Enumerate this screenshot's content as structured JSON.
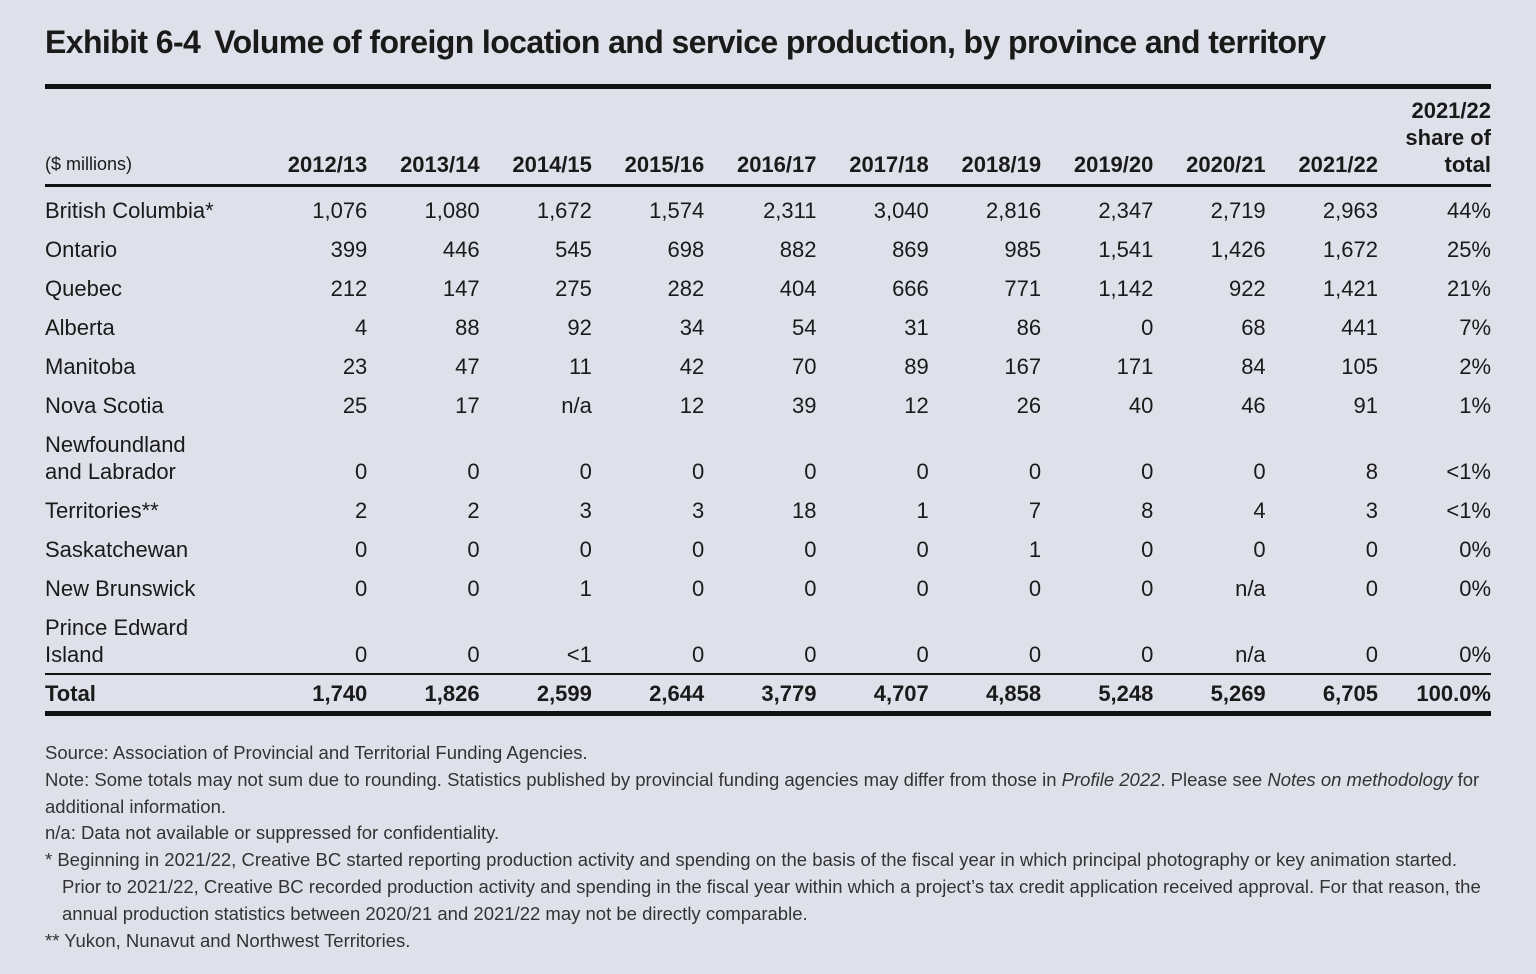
{
  "title": {
    "number": "Exhibit 6-4",
    "text": "Volume of foreign location and service production, by province and territory"
  },
  "table": {
    "unit_label": "($ millions)",
    "columns": [
      "2012/13",
      "2013/14",
      "2014/15",
      "2015/16",
      "2016/17",
      "2017/18",
      "2018/19",
      "2019/20",
      "2020/21",
      "2021/22"
    ],
    "share_header": [
      "2021/22",
      "share of",
      "total"
    ],
    "rows": [
      {
        "label": [
          "British Columbia*"
        ],
        "values": [
          "1,076",
          "1,080",
          "1,672",
          "1,574",
          "2,311",
          "3,040",
          "2,816",
          "2,347",
          "2,719",
          "2,963"
        ],
        "share": "44%"
      },
      {
        "label": [
          "Ontario"
        ],
        "values": [
          "399",
          "446",
          "545",
          "698",
          "882",
          "869",
          "985",
          "1,541",
          "1,426",
          "1,672"
        ],
        "share": "25%"
      },
      {
        "label": [
          "Quebec"
        ],
        "values": [
          "212",
          "147",
          "275",
          "282",
          "404",
          "666",
          "771",
          "1,142",
          "922",
          "1,421"
        ],
        "share": "21%"
      },
      {
        "label": [
          "Alberta"
        ],
        "values": [
          "4",
          "88",
          "92",
          "34",
          "54",
          "31",
          "86",
          "0",
          "68",
          "441"
        ],
        "share": "7%"
      },
      {
        "label": [
          "Manitoba"
        ],
        "values": [
          "23",
          "47",
          "11",
          "42",
          "70",
          "89",
          "167",
          "171",
          "84",
          "105"
        ],
        "share": "2%"
      },
      {
        "label": [
          "Nova Scotia"
        ],
        "values": [
          "25",
          "17",
          "n/a",
          "12",
          "39",
          "12",
          "26",
          "40",
          "46",
          "91"
        ],
        "share": "1%"
      },
      {
        "label": [
          "Newfoundland",
          "and Labrador"
        ],
        "values": [
          "0",
          "0",
          "0",
          "0",
          "0",
          "0",
          "0",
          "0",
          "0",
          "8"
        ],
        "share": "<1%"
      },
      {
        "label": [
          "Territories**"
        ],
        "values": [
          "2",
          "2",
          "3",
          "3",
          "18",
          "1",
          "7",
          "8",
          "4",
          "3"
        ],
        "share": "<1%"
      },
      {
        "label": [
          "Saskatchewan"
        ],
        "values": [
          "0",
          "0",
          "0",
          "0",
          "0",
          "0",
          "1",
          "0",
          "0",
          "0"
        ],
        "share": "0%"
      },
      {
        "label": [
          "New Brunswick"
        ],
        "values": [
          "0",
          "0",
          "1",
          "0",
          "0",
          "0",
          "0",
          "0",
          "n/a",
          "0"
        ],
        "share": "0%"
      },
      {
        "label": [
          "Prince Edward",
          "Island"
        ],
        "values": [
          "0",
          "0",
          "<1",
          "0",
          "0",
          "0",
          "0",
          "0",
          "n/a",
          "0"
        ],
        "share": "0%"
      }
    ],
    "total": {
      "label": "Total",
      "values": [
        "1,740",
        "1,826",
        "2,599",
        "2,644",
        "3,779",
        "4,707",
        "4,858",
        "5,248",
        "5,269",
        "6,705"
      ],
      "share": "100.0%"
    }
  },
  "notes": {
    "source": "Source: Association of Provincial and Territorial Funding Agencies.",
    "note_a": "Note: Some totals may not sum due to rounding. Statistics published by provincial funding agencies may differ from those in ",
    "note_profile": "Profile 2022",
    "note_b": ". Please see ",
    "note_method": "Notes on methodology",
    "note_c": " for additional information.",
    "na": "n/a: Data not available or suppressed for confidentiality.",
    "star": "* Beginning in 2021/22, Creative BC started reporting production activity and spending on the basis of the fiscal year in which principal photography or key animation started. Prior to 2021/22, Creative BC recorded production activity and spending in the fiscal year within which a project’s tax credit application received approval. For that reason, the annual production statistics between 2020/21 and 2021/22 may not be directly comparable.",
    "dstar": "** Yukon, Nunavut and Northwest Territories."
  }
}
